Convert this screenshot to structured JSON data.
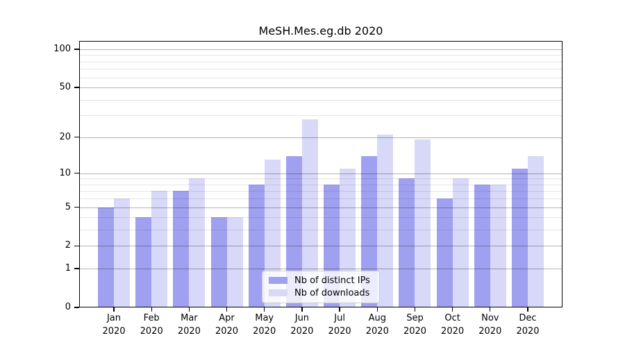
{
  "chart_data": {
    "type": "bar",
    "title": "MeSH.Mes.eg.db 2020",
    "categories": [
      "Jan",
      "Feb",
      "Mar",
      "Apr",
      "May",
      "Jun",
      "Jul",
      "Aug",
      "Sep",
      "Oct",
      "Nov",
      "Dec"
    ],
    "year": "2020",
    "series": [
      {
        "name": "Nb of distinct IPs",
        "color": "#a0a0f0",
        "values": [
          5,
          4,
          7,
          4,
          8,
          14,
          8,
          14,
          9,
          6,
          8,
          11
        ]
      },
      {
        "name": "Nb of downloads",
        "color": "#d8d8f8",
        "values": [
          6,
          7,
          9,
          4,
          13,
          28,
          11,
          21,
          19,
          9,
          8,
          14
        ]
      }
    ],
    "xlabel": "",
    "ylabel": "",
    "yscale": "log1p",
    "ylim": [
      0,
      116
    ],
    "yticks": [
      0,
      1,
      2,
      5,
      10,
      20,
      50,
      100
    ],
    "minor_yticks": [
      3,
      4,
      6,
      7,
      8,
      9,
      30,
      40,
      60,
      70,
      80,
      90
    ],
    "grid": "horizontal",
    "legend_position": "inside-bottom-center"
  }
}
